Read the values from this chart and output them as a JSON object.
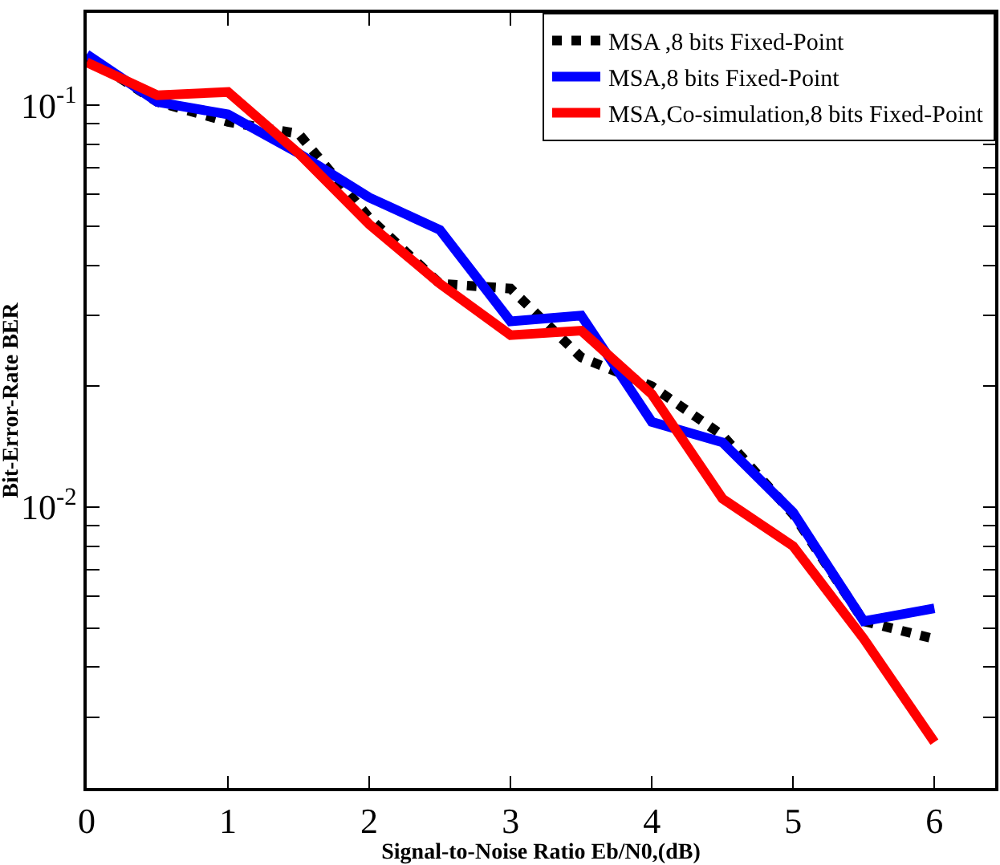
{
  "chart_data": {
    "type": "line",
    "xlabel": "Signal-to-Noise Ratio Eb/N0,(dB)",
    "ylabel": "Bit-Error-Rate BER",
    "log": "y",
    "legend": "top right",
    "xlim": [
      0,
      6.43
    ],
    "xticks": [
      0,
      1,
      2,
      3,
      4,
      5,
      6
    ],
    "ylim": [
      0.002,
      0.17
    ],
    "yticks": [
      {
        "value": 0.003,
        "label": null
      },
      {
        "value": 0.004,
        "label": null
      },
      {
        "value": 0.005,
        "label": null
      },
      {
        "value": 0.006,
        "label": null
      },
      {
        "value": 0.007,
        "label": null
      },
      {
        "value": 0.008,
        "label": null
      },
      {
        "value": 0.009,
        "label": null
      },
      {
        "value": 0.01,
        "label": "10$^{-2}$"
      },
      {
        "value": 0.02,
        "label": null
      },
      {
        "value": 0.03,
        "label": null
      },
      {
        "value": 0.04,
        "label": null
      },
      {
        "value": 0.05,
        "label": null
      },
      {
        "value": 0.06,
        "label": null
      },
      {
        "value": 0.07,
        "label": null
      },
      {
        "value": 0.08,
        "label": null
      },
      {
        "value": 0.09,
        "label": null
      },
      {
        "value": 0.1,
        "label": "10$^{-1}$"
      }
    ],
    "x": [
      0,
      0.5,
      1,
      1.5,
      2,
      2.5,
      3,
      3.5,
      4,
      4.5,
      5,
      5.5,
      6
    ],
    "series": [
      {
        "name": "MSA ,8 bits Fixed-Point",
        "color": "#000000",
        "line_style": "dotted",
        "values": [
          0.132,
          0.102,
          0.091,
          0.085,
          0.0525,
          0.036,
          0.035,
          0.0236,
          0.02,
          0.0151,
          0.0096,
          0.0052,
          0.0047
        ]
      },
      {
        "name": "MSA,8 bits Fixed-Point",
        "color": "#0000ff",
        "line_style": "solid",
        "values": [
          0.134,
          0.102,
          0.095,
          0.076,
          0.059,
          0.049,
          0.029,
          0.03,
          0.0163,
          0.0145,
          0.0097,
          0.0052,
          0.0056
        ]
      },
      {
        "name": "MSA,Co-simulation,8 bits Fixed-Point",
        "color": "#ff0000",
        "line_style": "solid",
        "values": [
          0.128,
          0.106,
          0.108,
          0.076,
          0.0506,
          0.036,
          0.0268,
          0.0275,
          0.0191,
          0.0105,
          0.008,
          0.0047,
          0.0026
        ]
      }
    ]
  }
}
